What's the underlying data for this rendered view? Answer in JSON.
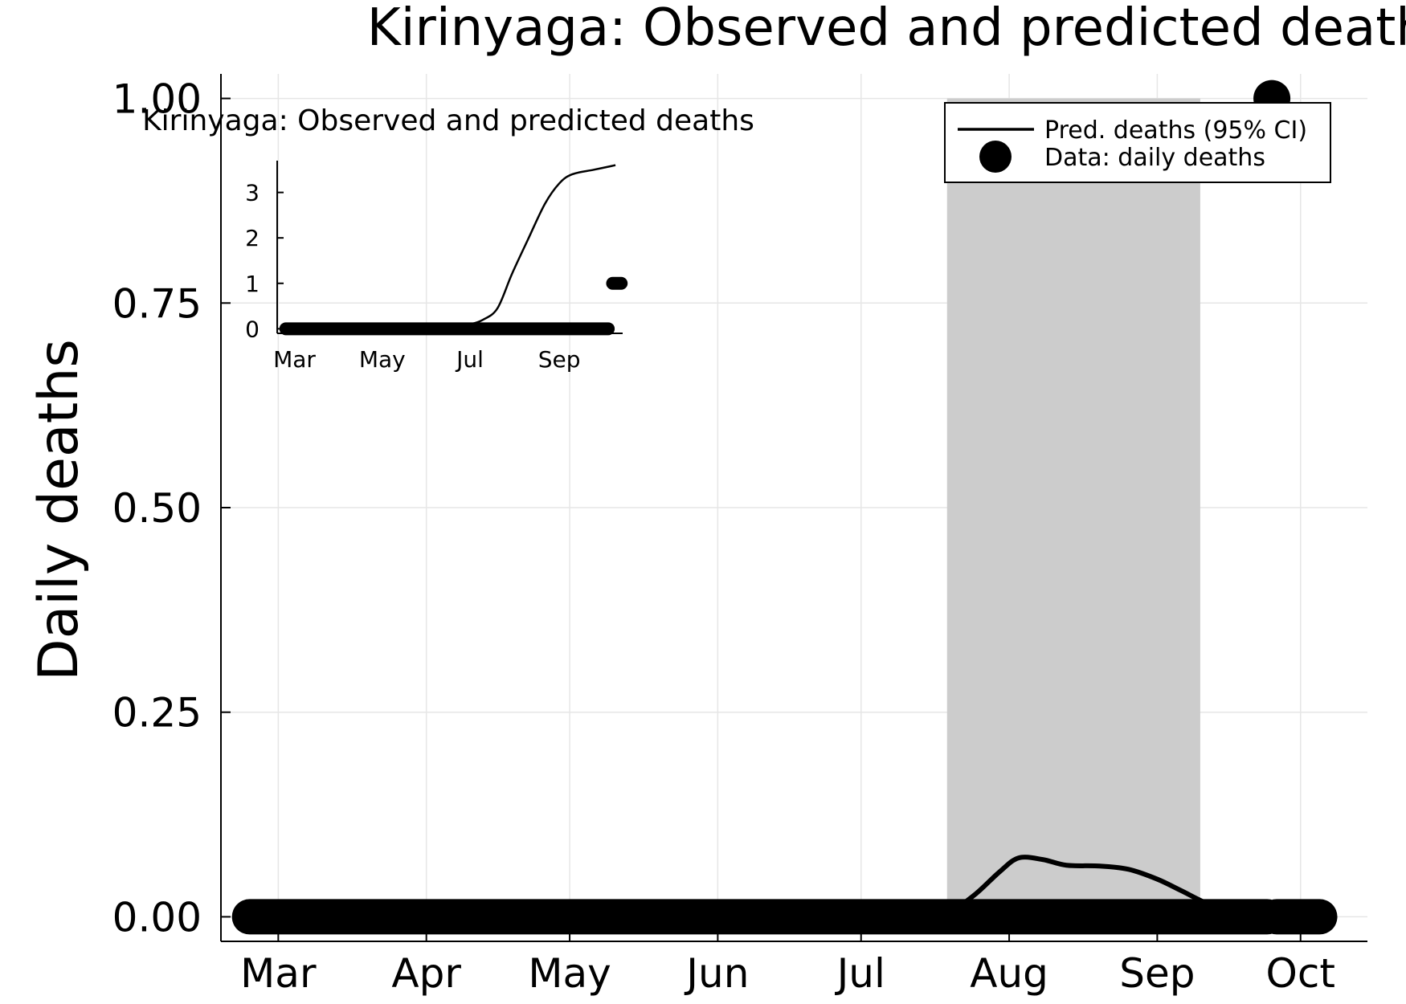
{
  "chart_data": [
    {
      "type": "line",
      "title": "Kirinyaga: Observed and predicted deaths",
      "xlabel": "",
      "ylabel": "Daily deaths",
      "ylim": [
        -0.03,
        1.03
      ],
      "yticks": [
        0.0,
        0.25,
        0.5,
        0.75,
        1.0
      ],
      "ytick_labels": [
        "0.00",
        "0.25",
        "0.50",
        "0.75",
        "1.00"
      ],
      "xlim": [
        "2020-02-18",
        "2020-10-15"
      ],
      "xtick_labels": [
        "Mar",
        "Apr",
        "May",
        "Jun",
        "Jul",
        "Aug",
        "Sep",
        "Oct"
      ],
      "xtick_dates": [
        "2020-03-01",
        "2020-04-01",
        "2020-05-01",
        "2020-06-01",
        "2020-07-01",
        "2020-08-01",
        "2020-09-01",
        "2020-10-01"
      ],
      "grid": true,
      "legend_position": "top-right",
      "legend": [
        {
          "label": "Pred. deaths (95% CI)",
          "type": "line"
        },
        {
          "label": "Data: daily deaths",
          "type": "marker"
        }
      ],
      "series": [
        {
          "name": "Pred. deaths (95% CI)",
          "type": "line",
          "color": "#000000",
          "x": [
            "2020-02-24",
            "2020-07-10",
            "2020-07-15",
            "2020-07-20",
            "2020-07-25",
            "2020-07-30",
            "2020-08-03",
            "2020-08-08",
            "2020-08-13",
            "2020-08-20",
            "2020-08-26",
            "2020-09-01",
            "2020-09-06",
            "2020-09-12",
            "2020-09-18",
            "2020-09-24"
          ],
          "y": [
            0.0,
            0.0,
            0.001,
            0.008,
            0.028,
            0.055,
            0.072,
            0.07,
            0.063,
            0.062,
            0.058,
            0.046,
            0.032,
            0.015,
            0.006,
            0.002
          ],
          "ci_band": {
            "x_start": "2020-07-19",
            "x_end": "2020-09-10",
            "upper": 1.0,
            "lower": 0.0,
            "color": "#cccccc"
          }
        },
        {
          "name": "Data: daily deaths",
          "type": "scatter",
          "color": "#000000",
          "segments": [
            {
              "x_start": "2020-02-24",
              "x_end": "2020-09-24",
              "y": 0
            },
            {
              "x_start": "2020-09-26",
              "x_end": "2020-10-05",
              "y": 0
            }
          ],
          "points": [
            {
              "x": "2020-09-25",
              "y": 1
            }
          ]
        }
      ]
    },
    {
      "type": "line",
      "title": "Kirinyaga: Observed and predicted deaths",
      "inset": true,
      "xlabel": "",
      "ylabel": "",
      "ylim": [
        -0.1,
        3.7
      ],
      "yticks": [
        0,
        1,
        2,
        3
      ],
      "ytick_labels": [
        "0",
        "1",
        "2",
        "3"
      ],
      "xlim": [
        "2020-02-18",
        "2020-10-15"
      ],
      "xtick_labels": [
        "Mar",
        "May",
        "Jul",
        "Sep"
      ],
      "xtick_dates": [
        "2020-03-01",
        "2020-05-01",
        "2020-07-01",
        "2020-09-01"
      ],
      "grid": false,
      "series": [
        {
          "name": "",
          "type": "line",
          "color": "#000000",
          "x": [
            "2020-03-01",
            "2020-05-15",
            "2020-06-01",
            "2020-06-20",
            "2020-07-01",
            "2020-07-10",
            "2020-07-20",
            "2020-07-30",
            "2020-08-10",
            "2020-08-22",
            "2020-09-01",
            "2020-09-10",
            "2020-09-25",
            "2020-10-10"
          ],
          "y": [
            0.0,
            0.0,
            0.02,
            0.05,
            0.1,
            0.2,
            0.45,
            1.2,
            1.95,
            2.75,
            3.2,
            3.4,
            3.5,
            3.6
          ]
        },
        {
          "name": "",
          "type": "scatter",
          "color": "#000000",
          "segments": [
            {
              "x_start": "2020-02-24",
              "x_end": "2020-10-05",
              "y": 0
            },
            {
              "x_start": "2020-10-08",
              "x_end": "2020-10-14",
              "y": 1
            }
          ]
        }
      ]
    }
  ]
}
